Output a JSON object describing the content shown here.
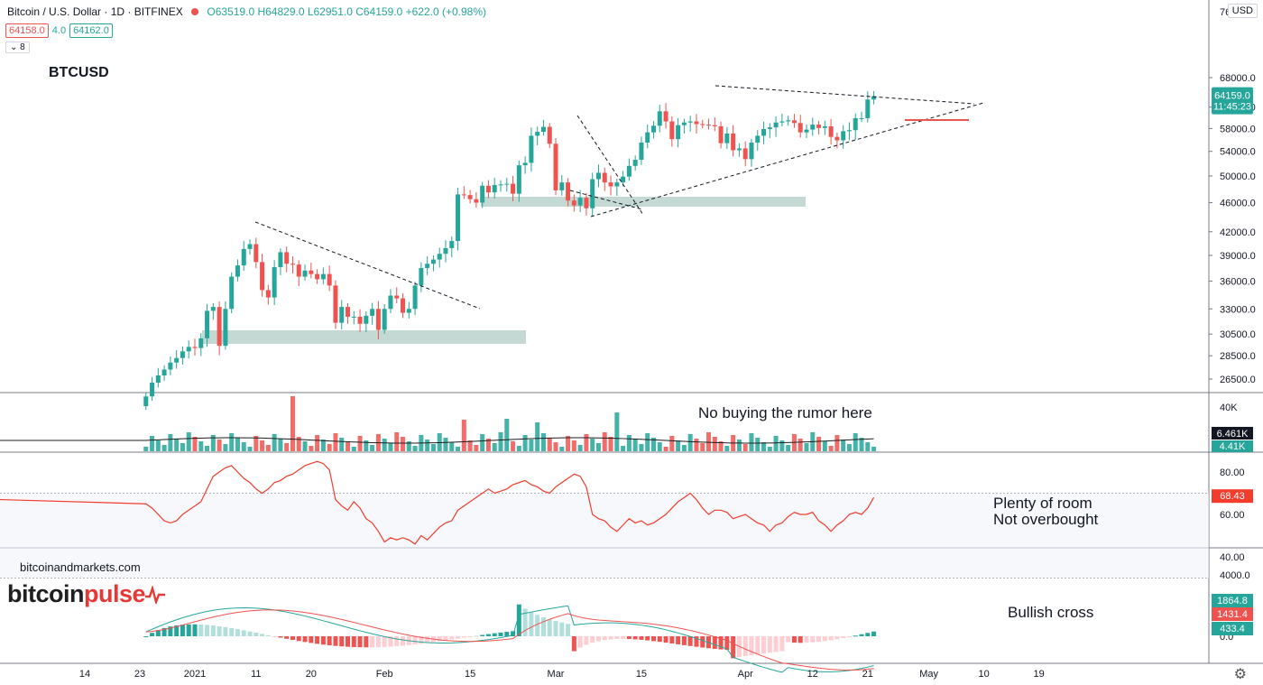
{
  "header": {
    "symbol": "Bitcoin / U.S. Dollar · 1D · BITFINEX",
    "ohlc": "O63519.0 H64829.0 L62951.0 C64159.0 +622.0 (+0.98%)",
    "bid": "64158.0",
    "spread": "4.0",
    "ask": "64162.0",
    "indicator_count": "8",
    "currency": "USD"
  },
  "annotations": {
    "ticker": "BTCUSD",
    "volume_note": "No buying the rumor here",
    "rsi_note_1": "Plenty of room",
    "rsi_note_2": "Not overbought",
    "macd_note": "Bullish cross",
    "site": "bitcoinandmarkets.com",
    "logo_part1": "bitcoin",
    "logo_part2": "pulse"
  },
  "colors": {
    "up": "#26a69a",
    "down": "#ef5350",
    "zone": "#b2ccc5",
    "volume_ma": "#1f1f1f",
    "rsi": "#f23c2c",
    "macd_line": "#26a69a",
    "signal_line": "#ef5350"
  },
  "chart_data": {
    "type": "candlestick",
    "title": "Bitcoin / U.S. Dollar · 1D · BITFINEX",
    "price_axis": {
      "ticks": [
        26500,
        28500,
        30500,
        33000,
        36000,
        39000,
        42000,
        46000,
        50000,
        54000,
        58000,
        62000,
        68000
      ],
      "top_label": "76000.0",
      "last_price": "64159.0",
      "countdown": "11:45:23"
    },
    "x_axis": {
      "labels": [
        "14",
        "23",
        "2021",
        "11",
        "20",
        "Feb",
        "15",
        "Mar",
        "15",
        "Apr",
        "12",
        "21",
        "May",
        "10",
        "19"
      ],
      "label_days": [
        -18,
        -9,
        0,
        10,
        19,
        31,
        45,
        59,
        73,
        90,
        101,
        110,
        120,
        129,
        138
      ]
    },
    "candles_close": [
      25100,
      26200,
      26800,
      27300,
      27900,
      28300,
      28900,
      29300,
      29200,
      30100,
      32800,
      33200,
      29400,
      33000,
      36500,
      37800,
      39800,
      40400,
      38200,
      35000,
      34200,
      37600,
      39400,
      38000,
      37900,
      36500,
      37200,
      36800,
      36200,
      36800,
      35500,
      31600,
      33200,
      32200,
      32200,
      31500,
      32300,
      33000,
      30900,
      33000,
      34400,
      34100,
      32600,
      33000,
      35500,
      37500,
      38000,
      38500,
      39200,
      39900,
      40800,
      47200,
      47100,
      46500,
      46000,
      48500,
      47500,
      48600,
      48700,
      48800,
      47300,
      51700,
      52100,
      56700,
      57400,
      58300,
      55300,
      47800,
      49000,
      46300,
      45600,
      46700,
      45200,
      49500,
      50500,
      49000,
      48400,
      49000,
      49900,
      51600,
      52600,
      55500,
      57300,
      58500,
      61200,
      59300,
      56100,
      58600,
      59100,
      59300,
      58800,
      58700,
      58600,
      58400,
      55400,
      57100,
      54200,
      54500,
      52700,
      55500,
      56700,
      57900,
      58200,
      59100,
      59300,
      59500,
      59000,
      57300,
      57800,
      58700,
      58100,
      58400,
      56500,
      55900,
      57500,
      57700,
      59900,
      59900,
      63500,
      64159
    ],
    "series": [
      {
        "name": "Volume",
        "current": "6.461K",
        "ma": "4.41K",
        "ticks": [
          "40K"
        ]
      },
      {
        "name": "RSI",
        "current": "68.43",
        "ticks": [
          "80.00",
          "60.00",
          "40.00"
        ]
      },
      {
        "name": "MACD",
        "macd": "1864.8",
        "signal": "1431.4",
        "histogram": "433.4",
        "ticks": [
          "4000.0",
          "0.0"
        ]
      }
    ]
  }
}
